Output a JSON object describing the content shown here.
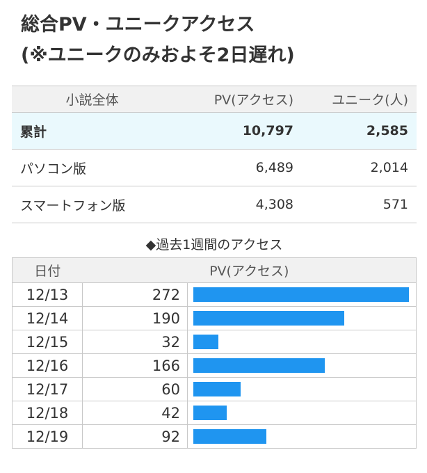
{
  "title": {
    "line1": "総合PV・ユニークアクセス",
    "line2": "(※ユニークのみおよそ2日遅れ)"
  },
  "summary": {
    "headers": [
      "小説全体",
      "PV(アクセス)",
      "ユニーク(人)"
    ],
    "rows": [
      {
        "label": "累計",
        "pv": "10,797",
        "unique": "2,585"
      },
      {
        "label": "パソコン版",
        "pv": "6,489",
        "unique": "2,014"
      },
      {
        "label": "スマートフォン版",
        "pv": "4,308",
        "unique": "571"
      }
    ]
  },
  "weekly": {
    "heading": "◆過去1週間のアクセス",
    "headers": [
      "日付",
      "PV(アクセス)"
    ],
    "bar_color": "#1f95f0",
    "max": 272,
    "rows": [
      {
        "date": "12/13",
        "pv": "272",
        "value": 272
      },
      {
        "date": "12/14",
        "pv": "190",
        "value": 190
      },
      {
        "date": "12/15",
        "pv": "32",
        "value": 32
      },
      {
        "date": "12/16",
        "pv": "166",
        "value": 166
      },
      {
        "date": "12/17",
        "pv": "60",
        "value": 60
      },
      {
        "date": "12/18",
        "pv": "42",
        "value": 42
      },
      {
        "date": "12/19",
        "pv": "92",
        "value": 92
      }
    ]
  }
}
